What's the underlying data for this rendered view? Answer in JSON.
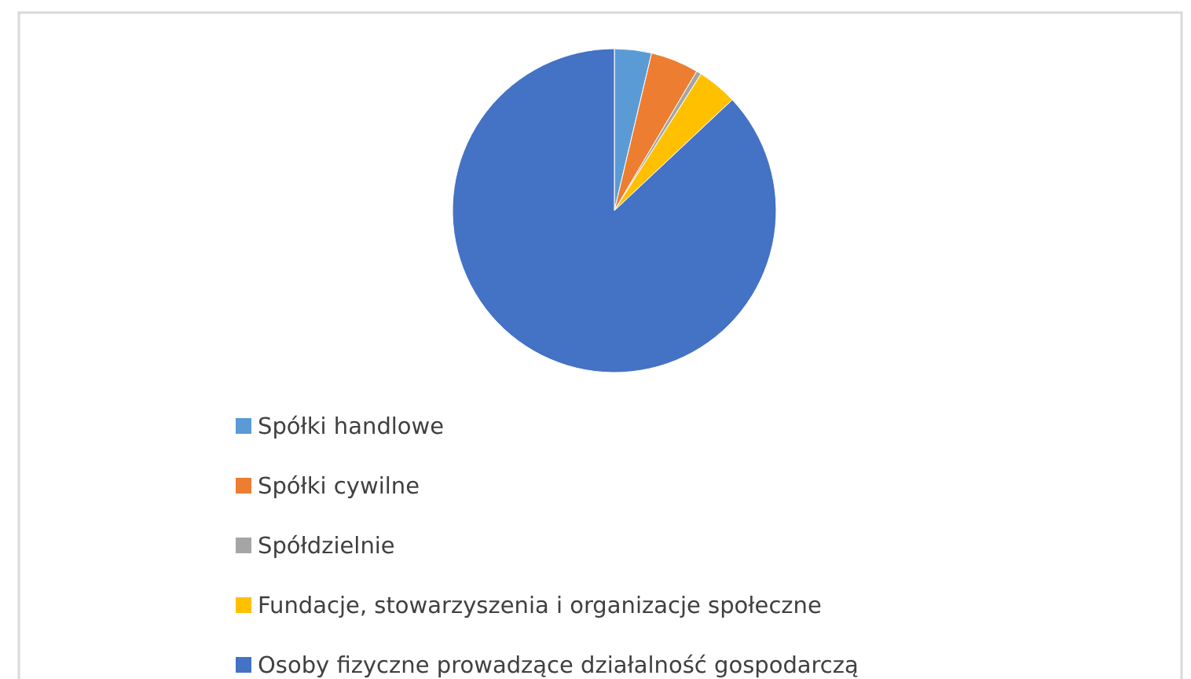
{
  "chart_data": {
    "type": "pie",
    "categories": [
      "Spółki handlowe",
      "Spółki cywilne",
      "Spółdzielnie",
      "Fundacje, stowarzyszenia i organizacje społeczne",
      "Osoby fizyczne prowadzące działalność gospodarczą"
    ],
    "values": [
      3.7,
      4.8,
      0.5,
      4.0,
      87.0
    ],
    "colors": [
      "#5b9bd5",
      "#ed7d31",
      "#a5a5a5",
      "#ffc000",
      "#4472c4"
    ],
    "legend": "bottom"
  }
}
